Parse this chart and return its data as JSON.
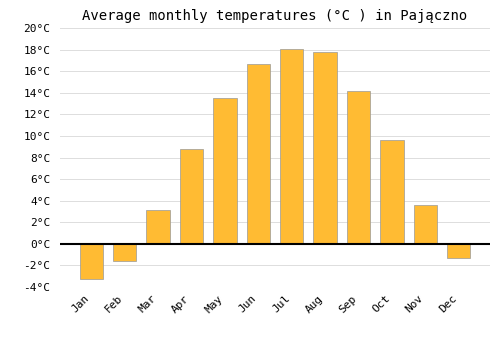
{
  "title": "Average monthly temperatures (°C ) in Pajączno",
  "months": [
    "Jan",
    "Feb",
    "Mar",
    "Apr",
    "May",
    "Jun",
    "Jul",
    "Aug",
    "Sep",
    "Oct",
    "Nov",
    "Dec"
  ],
  "values": [
    -3.3,
    -1.6,
    3.1,
    8.8,
    13.5,
    16.7,
    18.1,
    17.8,
    14.2,
    9.6,
    3.6,
    -1.3
  ],
  "bar_color": "#FFBB33",
  "bar_edge_color": "#999999",
  "background_color": "#FFFFFF",
  "grid_color": "#DDDDDD",
  "ylim": [
    -4,
    20
  ],
  "yticks": [
    -4,
    -2,
    0,
    2,
    4,
    6,
    8,
    10,
    12,
    14,
    16,
    18,
    20
  ],
  "ytick_labels": [
    "-4°C",
    "-2°C",
    "0°C",
    "2°C",
    "4°C",
    "6°C",
    "8°C",
    "10°C",
    "12°C",
    "14°C",
    "16°C",
    "18°C",
    "20°C"
  ],
  "title_fontsize": 10,
  "tick_fontsize": 8,
  "bar_width": 0.7
}
